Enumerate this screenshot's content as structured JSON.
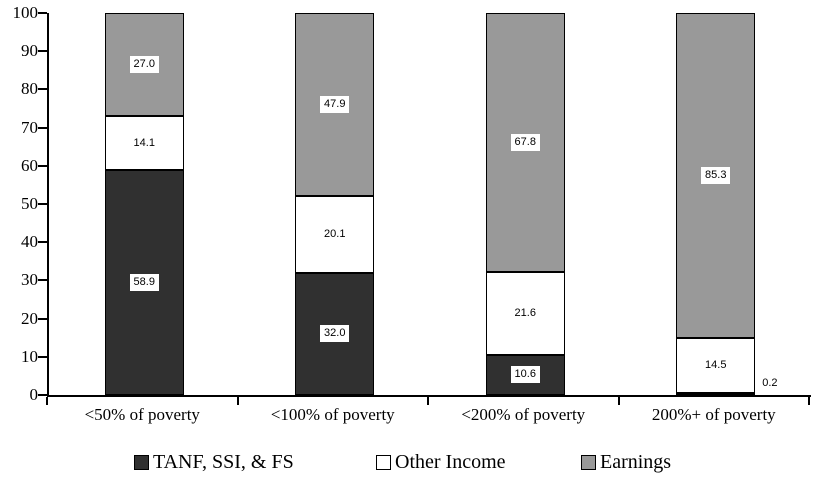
{
  "chart_data": {
    "type": "bar",
    "stacked": true,
    "title": "",
    "categories": [
      "<50% of poverty",
      "<100% of poverty",
      "<200% of poverty",
      "200%+ of poverty"
    ],
    "series": [
      {
        "name": "TANF, SSI, & FS",
        "color": "#303030",
        "values": [
          58.9,
          32.0,
          10.6,
          0.2
        ]
      },
      {
        "name": "Other Income",
        "color": "#ffffff",
        "values": [
          14.1,
          20.1,
          21.6,
          14.5
        ]
      },
      {
        "name": "Earnings",
        "color": "#999999",
        "values": [
          27.0,
          47.9,
          67.8,
          85.3
        ]
      }
    ],
    "xlabel": "",
    "ylabel": "",
    "ylim": [
      0,
      100
    ],
    "y_ticks": [
      0,
      10,
      20,
      30,
      40,
      50,
      60,
      70,
      80,
      90,
      100
    ],
    "grid": false,
    "legend_position": "bottom",
    "axis_color": "#000000",
    "data_label_box_color": "#ffffff",
    "data_label_decimals": 1
  }
}
